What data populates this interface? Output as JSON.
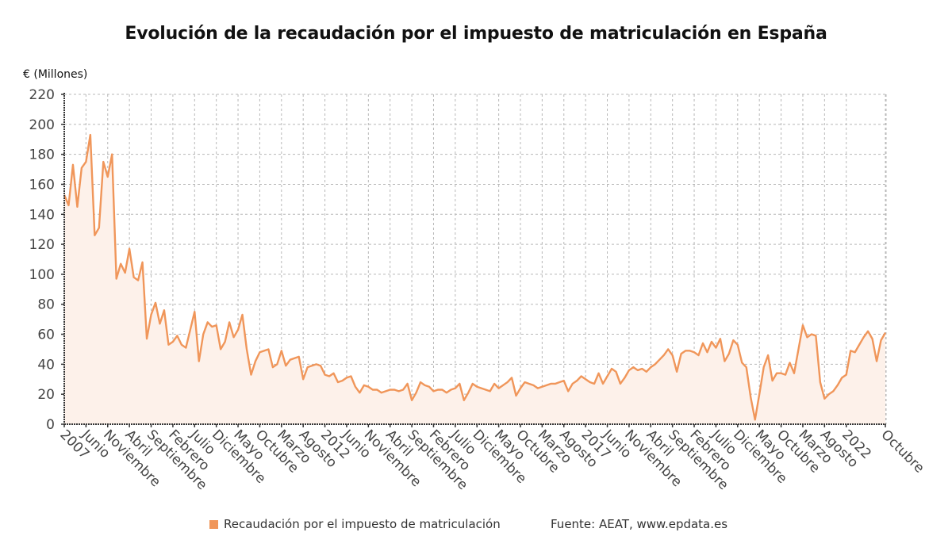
{
  "chart_data": {
    "type": "area",
    "title": "Evolución de la recaudación por el impuesto de matriculación en España",
    "ylabel": "€ (Millones)",
    "xlabel": "",
    "ylim": [
      0,
      220
    ],
    "yticks": [
      0,
      20,
      40,
      60,
      80,
      100,
      120,
      140,
      160,
      180,
      200,
      220
    ],
    "grid": true,
    "legend_position": "bottom",
    "start": "2007-01",
    "end": "2022-10",
    "frequency": "monthly",
    "xtick_every_months": 5,
    "xtick_labels": [
      "2007",
      "Junio",
      "Noviembre",
      "Abril",
      "Septiembre",
      "Febrero",
      "Julio",
      "Diciembre",
      "Mayo",
      "Octubre",
      "Marzo",
      "Agosto",
      "2012",
      "Junio",
      "Noviembre",
      "Abril",
      "Septiembre",
      "Febrero",
      "Julio",
      "Diciembre",
      "Mayo",
      "Octubre",
      "Marzo",
      "Agosto",
      "2017",
      "Junio",
      "Noviembre",
      "Abril",
      "Septiembre",
      "Febrero",
      "Julio",
      "Diciembre",
      "Mayo",
      "Octubre",
      "Marzo",
      "Agosto",
      "2022",
      "Octubre"
    ],
    "xtick_months": [
      0,
      5,
      10,
      15,
      20,
      25,
      30,
      35,
      40,
      45,
      50,
      55,
      60,
      65,
      70,
      75,
      80,
      85,
      90,
      95,
      100,
      105,
      110,
      115,
      120,
      125,
      130,
      135,
      140,
      145,
      150,
      155,
      160,
      165,
      170,
      175,
      180,
      189
    ],
    "series": [
      {
        "name": "Recaudación por el impuesto de matriculación",
        "color": "#f0965a",
        "values": [
          153,
          146,
          173,
          145,
          171,
          175,
          193,
          126,
          131,
          175,
          165,
          180,
          97,
          107,
          101,
          117,
          98,
          96,
          108,
          57,
          73,
          81,
          67,
          76,
          53,
          55,
          59,
          53,
          51,
          63,
          75,
          42,
          60,
          68,
          65,
          66,
          50,
          55,
          68,
          58,
          63,
          73,
          50,
          33,
          42,
          48,
          49,
          50,
          38,
          40,
          49,
          39,
          43,
          44,
          45,
          30,
          38,
          39,
          40,
          39,
          33,
          32,
          34,
          28,
          29,
          31,
          32,
          25,
          21,
          26,
          25,
          23,
          23,
          21,
          22,
          23,
          23,
          22,
          23,
          27,
          16,
          21,
          28,
          26,
          25,
          22,
          23,
          23,
          21,
          23,
          24,
          27,
          16,
          21,
          27,
          25,
          24,
          23,
          22,
          27,
          24,
          26,
          28,
          31,
          19,
          24,
          28,
          27,
          26,
          24,
          25,
          26,
          27,
          27,
          28,
          29,
          22,
          27,
          29,
          32,
          30,
          28,
          27,
          34,
          27,
          32,
          37,
          35,
          27,
          31,
          36,
          38,
          36,
          37,
          35,
          38,
          40,
          43,
          46,
          50,
          46,
          35,
          47,
          49,
          49,
          48,
          46,
          54,
          48,
          55,
          51,
          57,
          42,
          47,
          56,
          53,
          41,
          38,
          18,
          3,
          20,
          38,
          46,
          29,
          34,
          34,
          33,
          41,
          34,
          50,
          66,
          58,
          60,
          59,
          28,
          17,
          20,
          22,
          26,
          31,
          33,
          49,
          48,
          53,
          58,
          62,
          57,
          42,
          56,
          61
        ]
      }
    ],
    "legend": [
      "Recaudación por el impuesto de matriculación"
    ],
    "source": "Fuente: AEAT, www.epdata.es"
  }
}
